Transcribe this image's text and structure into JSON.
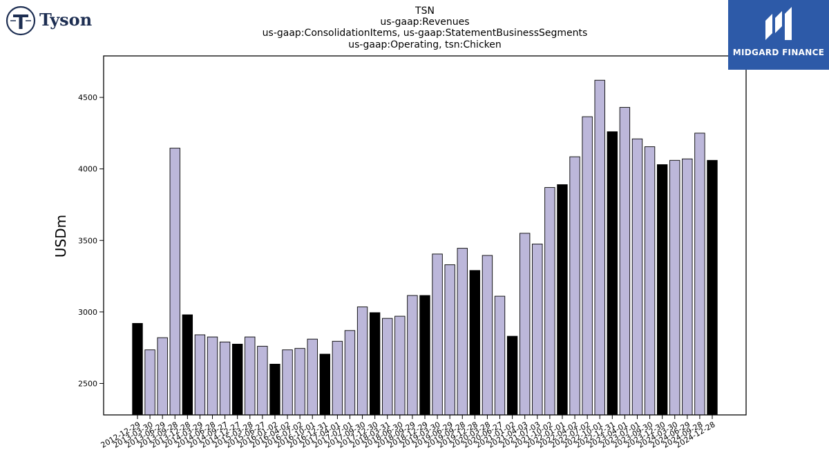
{
  "logos": {
    "left": {
      "name": "Tyson"
    },
    "right": {
      "name": "MIDGARD FINANCE"
    }
  },
  "colors": {
    "bar_default": "#bcb7da",
    "bar_highlight": "#000000",
    "bar_edge": "#000000",
    "brand_right_bg": "#2d5aa8"
  },
  "chart_data": {
    "type": "bar",
    "title_lines": [
      "TSN",
      "us-gaap:Revenues",
      "us-gaap:ConsolidationItems, us-gaap:StatementBusinessSegments",
      "us-gaap:Operating, tsn:Chicken"
    ],
    "xlabel": "",
    "ylabel": "USDm",
    "ylim": [
      2280,
      4790
    ],
    "yticks": [
      2500,
      3000,
      3500,
      4000,
      4500
    ],
    "grid": false,
    "categories": [
      "2012-12-29",
      "2013-03-30",
      "2013-06-29",
      "2013-09-28",
      "2013-12-28",
      "2014-03-29",
      "2014-06-28",
      "2014-09-27",
      "2014-12-27",
      "2015-03-28",
      "2015-06-27",
      "2016-01-02",
      "2016-04-02",
      "2016-07-02",
      "2016-10-01",
      "2016-12-31",
      "2017-04-01",
      "2017-07-01",
      "2017-09-30",
      "2017-12-30",
      "2018-03-31",
      "2018-06-30",
      "2018-09-29",
      "2018-12-29",
      "2019-03-30",
      "2019-06-29",
      "2019-09-28",
      "2019-12-28",
      "2020-03-28",
      "2020-06-27",
      "2021-01-02",
      "2021-04-03",
      "2021-07-03",
      "2021-10-02",
      "2022-01-01",
      "2022-04-02",
      "2022-07-02",
      "2022-10-01",
      "2022-12-31",
      "2023-04-01",
      "2023-07-01",
      "2023-09-30",
      "2023-12-30",
      "2024-03-30",
      "2024-06-29",
      "2024-09-28",
      "2024-12-28"
    ],
    "values": [
      2920,
      2735,
      2820,
      4145,
      2980,
      2840,
      2825,
      2790,
      2775,
      2825,
      2760,
      2635,
      2735,
      2745,
      2810,
      2705,
      2795,
      2870,
      3035,
      2995,
      2955,
      2970,
      3115,
      3115,
      3405,
      3330,
      3445,
      3290,
      3395,
      3110,
      2830,
      3550,
      3475,
      3870,
      3890,
      4085,
      4365,
      4620,
      4260,
      4430,
      4210,
      4155,
      4030,
      4060,
      4070,
      4250,
      4060
    ],
    "highlighted": [
      true,
      false,
      false,
      false,
      true,
      false,
      false,
      false,
      true,
      false,
      false,
      true,
      false,
      false,
      false,
      true,
      false,
      false,
      false,
      true,
      false,
      false,
      false,
      true,
      false,
      false,
      false,
      true,
      false,
      false,
      true,
      false,
      false,
      false,
      true,
      false,
      false,
      false,
      true,
      false,
      false,
      false,
      true,
      false,
      false,
      false,
      true
    ]
  }
}
